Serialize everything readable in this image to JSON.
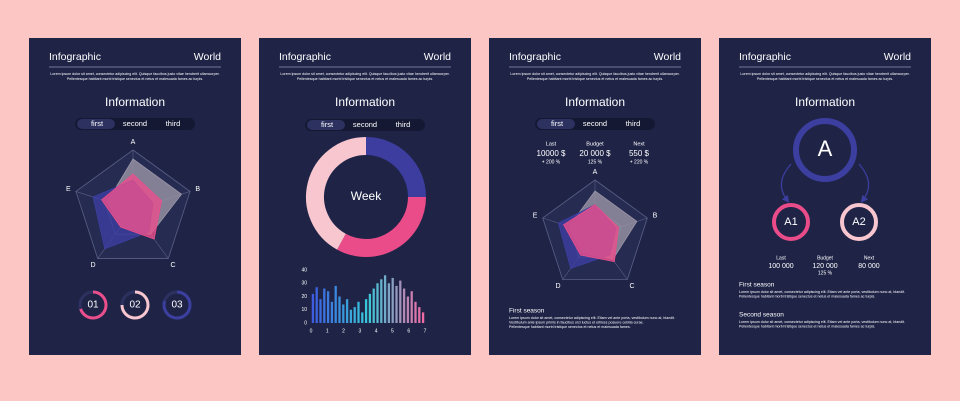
{
  "panels": [
    {
      "header": {
        "left": "Infographic",
        "right": "World"
      },
      "intro": [
        "Lorem ipsum dolor sit amet, consectetur adipiscing elit. Quisque faucibus justo vitae hendrerit ullamcorper.",
        "Pellentesque habitant morbi tristique senectus et netus et malesuada fames ac turpis."
      ],
      "title": "Information",
      "tabs": [
        "first",
        "second",
        "third"
      ],
      "radar": {
        "axes": [
          "A",
          "B",
          "C",
          "D",
          "E"
        ],
        "series": [
          {
            "color": "#9b95a6",
            "values": [
              0.85,
              0.85,
              0.5,
              0.35,
              0.45
            ]
          },
          {
            "color": "#3c3fa0",
            "values": [
              0.5,
              0.35,
              0.45,
              0.8,
              0.7
            ]
          },
          {
            "color": "#ea4f8c",
            "values": [
              0.6,
              0.5,
              0.6,
              0.35,
              0.55
            ]
          }
        ]
      },
      "rings": [
        {
          "label": "01",
          "value": 70,
          "color": "#ea4f8c"
        },
        {
          "label": "02",
          "value": 75,
          "color": "#f8c6cf"
        },
        {
          "label": "03",
          "value": 80,
          "color": "#3c3fa0"
        }
      ]
    },
    {
      "header": {
        "left": "Infographic",
        "right": "World"
      },
      "intro": [
        "Lorem ipsum dolor sit amet, consectetur adipiscing elit. Quisque faucibus justo vitae hendrerit ullamcorper.",
        "Pellentesque habitant morbi tristique senectus et netus et malesuada fames ac turpis."
      ],
      "title": "Information",
      "tabs": [
        "first",
        "second",
        "third"
      ],
      "donut": {
        "label": "Week",
        "segments": [
          {
            "value": 25,
            "color": "#3c3d9f"
          },
          {
            "value": 33,
            "color": "#ea4c89"
          },
          {
            "value": 42,
            "color": "#f8c6cf"
          }
        ]
      },
      "bars": {
        "yticks": [
          0,
          10,
          20,
          30,
          40
        ],
        "ylim": [
          0,
          40
        ],
        "xlabels": [
          "0",
          "1",
          "2",
          "3",
          "4",
          "5",
          "6",
          "7"
        ],
        "color_stops": [
          "#3d5ce0",
          "#38c9d9",
          "#f06aa3"
        ],
        "values": [
          22,
          27,
          18,
          26,
          24,
          16,
          28,
          20,
          14,
          18,
          10,
          12,
          16,
          8,
          18,
          22,
          26,
          30,
          33,
          36,
          30,
          34,
          28,
          32,
          26,
          20,
          24,
          16,
          12,
          8
        ]
      }
    },
    {
      "header": {
        "left": "Infographic",
        "right": "World"
      },
      "intro": [
        "Lorem ipsum dolor sit amet, consectetur adipiscing elit. Quisque faucibus justo vitae hendrerit ullamcorper.",
        "Pellentesque habitant morbi tristique senectus et netus et malesuada fames ac turpis."
      ],
      "title": "Information",
      "tabs": [
        "first",
        "second",
        "third"
      ],
      "stats": [
        {
          "label": "Last",
          "value": "10000 $",
          "change": "+ 200 %",
          "color": "#9ea2c2"
        },
        {
          "label": "Budget",
          "value": "20 000 $",
          "change": "125 %",
          "color": "#ea4f8c"
        },
        {
          "label": "Next",
          "value": "550 $",
          "change": "+ 220 %",
          "color": "#9ea2c2"
        }
      ],
      "radar": {
        "axes": [
          "A",
          "B",
          "C",
          "D",
          "E"
        ],
        "series": [
          {
            "color": "#9b95a6",
            "values": [
              0.8,
              0.8,
              0.55,
              0.4,
              0.5
            ]
          },
          {
            "color": "#3c3fa0",
            "values": [
              0.55,
              0.4,
              0.45,
              0.75,
              0.7
            ]
          },
          {
            "color": "#ea4f8c",
            "values": [
              0.55,
              0.45,
              0.6,
              0.45,
              0.6
            ]
          }
        ]
      },
      "season": {
        "title": "First season",
        "text": [
          "Lorem ipsum dolor sit amet, consectetur adipiscing elit. Etiam vel ante porta, vestibulum nunc at, blandit.",
          "Vestibulum ante ipsum primis in faucibus orci luctus et ultrices posuere cubilia curae.",
          "Pellentesque habitant morbi tristique senectus et netus et malesuada fames."
        ]
      }
    },
    {
      "header": {
        "left": "Infographic",
        "right": "World"
      },
      "intro": [
        "Lorem ipsum dolor sit amet, consectetur adipiscing elit. Quisque faucibus justo vitae hendrerit ullamcorper.",
        "Pellentesque habitant morbi tristique senectus et netus et malesuada fames ac turpis."
      ],
      "title": "Information",
      "tree": {
        "root": "A",
        "left": "A1",
        "right": "A2"
      },
      "stats": [
        {
          "label": "Last",
          "value": "100 000"
        },
        {
          "label": "Budget",
          "value": "120 000",
          "change": "125 %",
          "color": "#ea4f8c"
        },
        {
          "label": "Next",
          "value": "80 000"
        }
      ],
      "seasons": [
        {
          "title": "First season",
          "text": [
            "Lorem ipsum dolor sit amet, consectetur adipiscing elit. Etiam vel ante porta, vestibulum nunc at, blandit.",
            "Pellentesque habitant morbi tristique senectus et netus et malesuada fames ac turpis."
          ]
        },
        {
          "title": "Second season",
          "text": [
            "Lorem ipsum dolor sit amet, consectetur adipiscing elit. Etiam vel ante porta, vestibulum nunc at, blandit.",
            "Pellentesque habitant morbi tristique senectus et netus et malesuada fames ac turpis."
          ]
        }
      ]
    }
  ]
}
